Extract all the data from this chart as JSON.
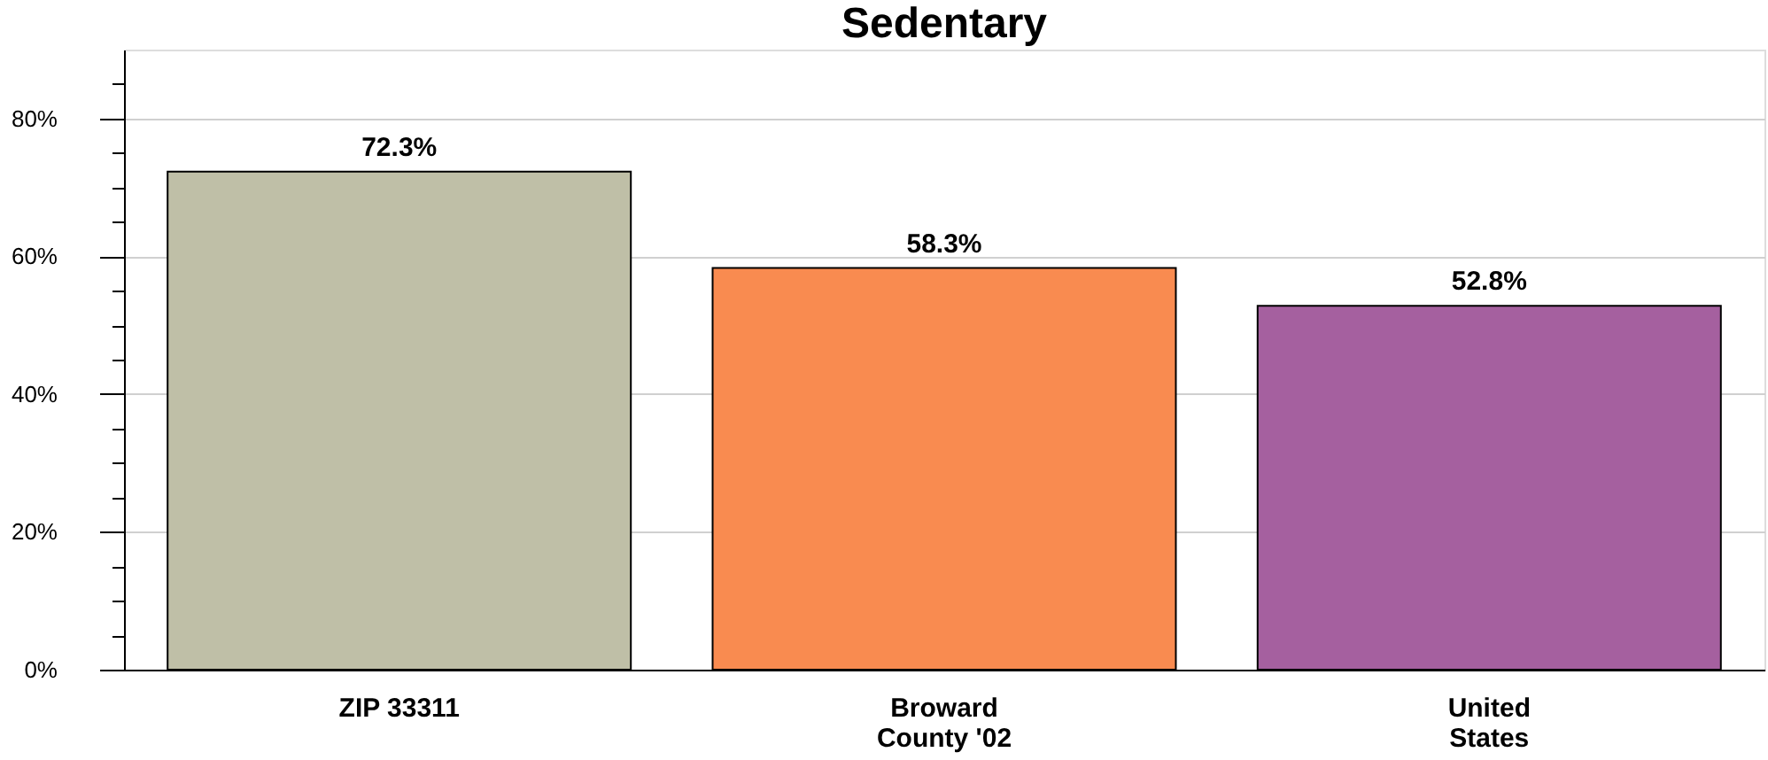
{
  "chart_data": {
    "type": "bar",
    "title": "Sedentary",
    "categories": [
      "ZIP 33311",
      "Broward\nCounty '02",
      "United\nStates"
    ],
    "values": [
      72.3,
      58.3,
      52.8
    ],
    "colors": [
      "#bfbfa7",
      "#f98b50",
      "#a5609f"
    ],
    "value_labels": [
      "72.3%",
      "58.3%",
      "52.8%"
    ],
    "ylim": [
      0,
      90
    ],
    "yticks": [
      {
        "value": 0,
        "label": "0%"
      },
      {
        "value": 5,
        "label": null
      },
      {
        "value": 10,
        "label": null
      },
      {
        "value": 15,
        "label": null
      },
      {
        "value": 20,
        "label": "20%"
      },
      {
        "value": 25,
        "label": null
      },
      {
        "value": 30,
        "label": null
      },
      {
        "value": 35,
        "label": null
      },
      {
        "value": 40,
        "label": "40%"
      },
      {
        "value": 45,
        "label": null
      },
      {
        "value": 50,
        "label": null
      },
      {
        "value": 55,
        "label": null
      },
      {
        "value": 60,
        "label": "60%"
      },
      {
        "value": 65,
        "label": null
      },
      {
        "value": 70,
        "label": null
      },
      {
        "value": 75,
        "label": null
      },
      {
        "value": 80,
        "label": "80%"
      },
      {
        "value": 85,
        "label": null
      }
    ],
    "grid": "y"
  }
}
